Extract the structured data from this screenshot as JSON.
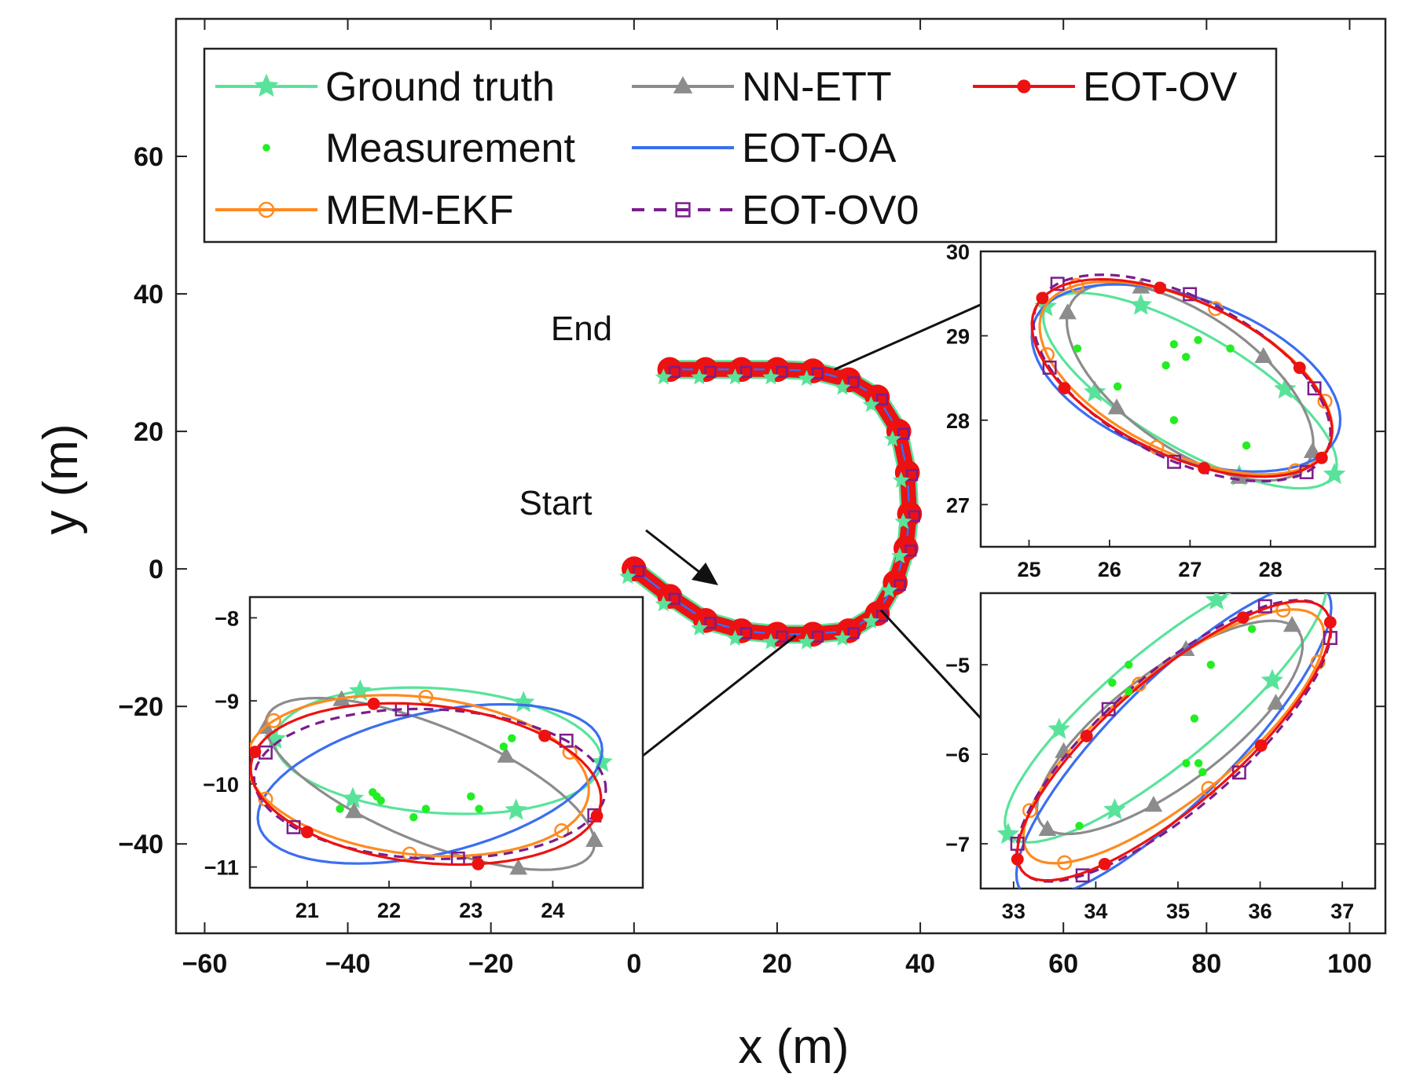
{
  "chart_data": {
    "type": "line",
    "xlabel": "x (m)",
    "ylabel": "y (m)",
    "xlim": [
      -64,
      105
    ],
    "ylim": [
      -53,
      80
    ],
    "xticks": [
      -60,
      -40,
      -20,
      0,
      20,
      40,
      60,
      80,
      100
    ],
    "yticks": [
      -40,
      -20,
      0,
      20,
      40,
      60
    ],
    "xtick_labels": [
      "−60",
      "−40",
      "−20",
      "0",
      "20",
      "40",
      "60",
      "80",
      "100"
    ],
    "ytick_labels": [
      "−40",
      "−20",
      "0",
      "20",
      "40",
      "60"
    ],
    "legend_position": "top-left",
    "legend": [
      {
        "label": "Ground truth",
        "color": "#59e39a",
        "marker": "star",
        "line": "solid"
      },
      {
        "label": "NN-ETT",
        "color": "#8c8c8c",
        "marker": "triangle",
        "line": "solid"
      },
      {
        "label": "EOT-OV",
        "color": "#ee1111",
        "marker": "filled-circle",
        "line": "solid"
      },
      {
        "label": "Measurement",
        "color": "#22ee22",
        "marker": "dot",
        "line": "none"
      },
      {
        "label": "EOT-OA",
        "color": "#3b6ef0",
        "marker": "none",
        "line": "solid"
      },
      {
        "label": "MEM-EKF",
        "color": "#ff8a1f",
        "marker": "circle",
        "line": "solid"
      },
      {
        "label": "EOT-OV0",
        "color": "#7b1d8c",
        "marker": "square",
        "line": "dashed"
      }
    ],
    "annotations": {
      "start": "Start",
      "end": "End"
    },
    "trajectory": {
      "x": [
        0,
        5,
        10,
        15,
        20,
        25,
        30,
        34,
        36.5,
        38,
        38.5,
        38.2,
        37,
        34,
        30,
        25,
        20,
        15,
        10,
        5
      ],
      "y": [
        0,
        -4,
        -7.5,
        -9,
        -9.5,
        -9.5,
        -9,
        -6.5,
        -2,
        3,
        8,
        14,
        20,
        25,
        27.5,
        28.8,
        29,
        29,
        29,
        29
      ]
    },
    "insets": [
      {
        "name": "inset-start",
        "xlim": [
          20.3,
          25.1
        ],
        "ylim": [
          -11.25,
          -7.75
        ],
        "xticks": [
          21,
          22,
          23,
          24
        ],
        "yticks": [
          -8,
          -9,
          -10,
          -11
        ],
        "xtick_labels": [
          "21",
          "22",
          "23",
          "24"
        ],
        "ytick_labels": [
          "−8",
          "−9",
          "−10",
          "−11"
        ],
        "ellipses": [
          {
            "series": "Ground truth",
            "cx": 22.6,
            "cy": -9.6,
            "a": 2.0,
            "b": 0.75,
            "angle": -4
          },
          {
            "series": "NN-ETT",
            "cx": 22.5,
            "cy": -10.0,
            "a": 2.15,
            "b": 0.7,
            "angle": -22
          },
          {
            "series": "EOT-OA",
            "cx": 22.5,
            "cy": -10.0,
            "a": 2.15,
            "b": 0.85,
            "angle": 13
          },
          {
            "series": "MEM-EKF",
            "cx": 22.35,
            "cy": -9.9,
            "a": 2.1,
            "b": 0.95,
            "angle": -6
          },
          {
            "series": "EOT-OV0",
            "cx": 22.5,
            "cy": -10.0,
            "a": 2.15,
            "b": 0.9,
            "angle": -2
          },
          {
            "series": "EOT-OV",
            "cx": 22.45,
            "cy": -10.0,
            "a": 2.15,
            "b": 0.95,
            "angle": -6
          }
        ],
        "measurements": [
          [
            21.4,
            -10.3
          ],
          [
            21.8,
            -10.1
          ],
          [
            21.85,
            -10.15
          ],
          [
            21.9,
            -10.2
          ],
          [
            22.3,
            -10.4
          ],
          [
            22.45,
            -10.3
          ],
          [
            23.0,
            -10.15
          ],
          [
            23.1,
            -10.3
          ],
          [
            23.4,
            -9.55
          ],
          [
            23.5,
            -9.45
          ]
        ]
      },
      {
        "name": "inset-end",
        "xlim": [
          24.4,
          29.3
        ],
        "ylim": [
          26.5,
          30.0
        ],
        "xticks": [
          25,
          26,
          27,
          28
        ],
        "yticks": [
          27,
          28,
          29,
          30
        ],
        "xtick_labels": [
          "25",
          "26",
          "27",
          "28"
        ],
        "ytick_labels": [
          "27",
          "28",
          "29",
          "30"
        ],
        "ellipses": [
          {
            "series": "Ground truth",
            "cx": 27.0,
            "cy": 28.35,
            "a": 2.05,
            "b": 0.68,
            "angle": -29
          },
          {
            "series": "NN-ETT",
            "cx": 27.0,
            "cy": 28.45,
            "a": 1.75,
            "b": 0.8,
            "angle": -33
          },
          {
            "series": "EOT-OA",
            "cx": 26.95,
            "cy": 28.5,
            "a": 2.0,
            "b": 0.95,
            "angle": -19
          },
          {
            "series": "MEM-EKF",
            "cx": 26.95,
            "cy": 28.5,
            "a": 1.95,
            "b": 0.9,
            "angle": -24
          },
          {
            "series": "EOT-OV0",
            "cx": 26.9,
            "cy": 28.5,
            "a": 2.0,
            "b": 0.95,
            "angle": -26
          },
          {
            "series": "EOT-OV",
            "cx": 26.9,
            "cy": 28.5,
            "a": 2.0,
            "b": 0.92,
            "angle": -24
          }
        ],
        "measurements": [
          [
            25.6,
            28.85
          ],
          [
            26.1,
            28.4
          ],
          [
            26.7,
            28.65
          ],
          [
            26.8,
            28.9
          ],
          [
            26.8,
            28.0
          ],
          [
            26.95,
            28.75
          ],
          [
            27.1,
            28.95
          ],
          [
            27.5,
            28.85
          ],
          [
            27.7,
            27.7
          ]
        ]
      },
      {
        "name": "inset-turn",
        "xlim": [
          32.6,
          37.4
        ],
        "ylim": [
          -7.5,
          -4.2
        ],
        "xticks": [
          33,
          34,
          35,
          36,
          37
        ],
        "yticks": [
          -5,
          -6,
          -7
        ],
        "xtick_labels": [
          "33",
          "34",
          "35",
          "36",
          "37"
        ],
        "ytick_labels": [
          "−5",
          "−6",
          "−7"
        ],
        "ellipses": [
          {
            "series": "Ground truth",
            "cx": 34.85,
            "cy": -5.45,
            "a": 2.4,
            "b": 0.65,
            "angle": 37
          },
          {
            "series": "NN-ETT",
            "cx": 34.9,
            "cy": -5.7,
            "a": 1.9,
            "b": 0.65,
            "angle": 34
          },
          {
            "series": "EOT-OA",
            "cx": 34.95,
            "cy": -5.85,
            "a": 2.5,
            "b": 0.7,
            "angle": 42
          },
          {
            "series": "MEM-EKF",
            "cx": 34.95,
            "cy": -5.8,
            "a": 2.2,
            "b": 0.72,
            "angle": 36
          },
          {
            "series": "EOT-OV0",
            "cx": 34.95,
            "cy": -5.85,
            "a": 2.35,
            "b": 0.78,
            "angle": 38
          },
          {
            "series": "EOT-OV",
            "cx": 34.95,
            "cy": -5.85,
            "a": 2.35,
            "b": 0.74,
            "angle": 38
          }
        ],
        "measurements": [
          [
            33.8,
            -6.8
          ],
          [
            34.2,
            -5.2
          ],
          [
            34.4,
            -5.0
          ],
          [
            34.4,
            -5.3
          ],
          [
            35.1,
            -6.1
          ],
          [
            35.25,
            -6.1
          ],
          [
            35.2,
            -5.6
          ],
          [
            35.4,
            -5.0
          ],
          [
            35.3,
            -6.2
          ],
          [
            35.9,
            -4.6
          ]
        ]
      }
    ]
  }
}
